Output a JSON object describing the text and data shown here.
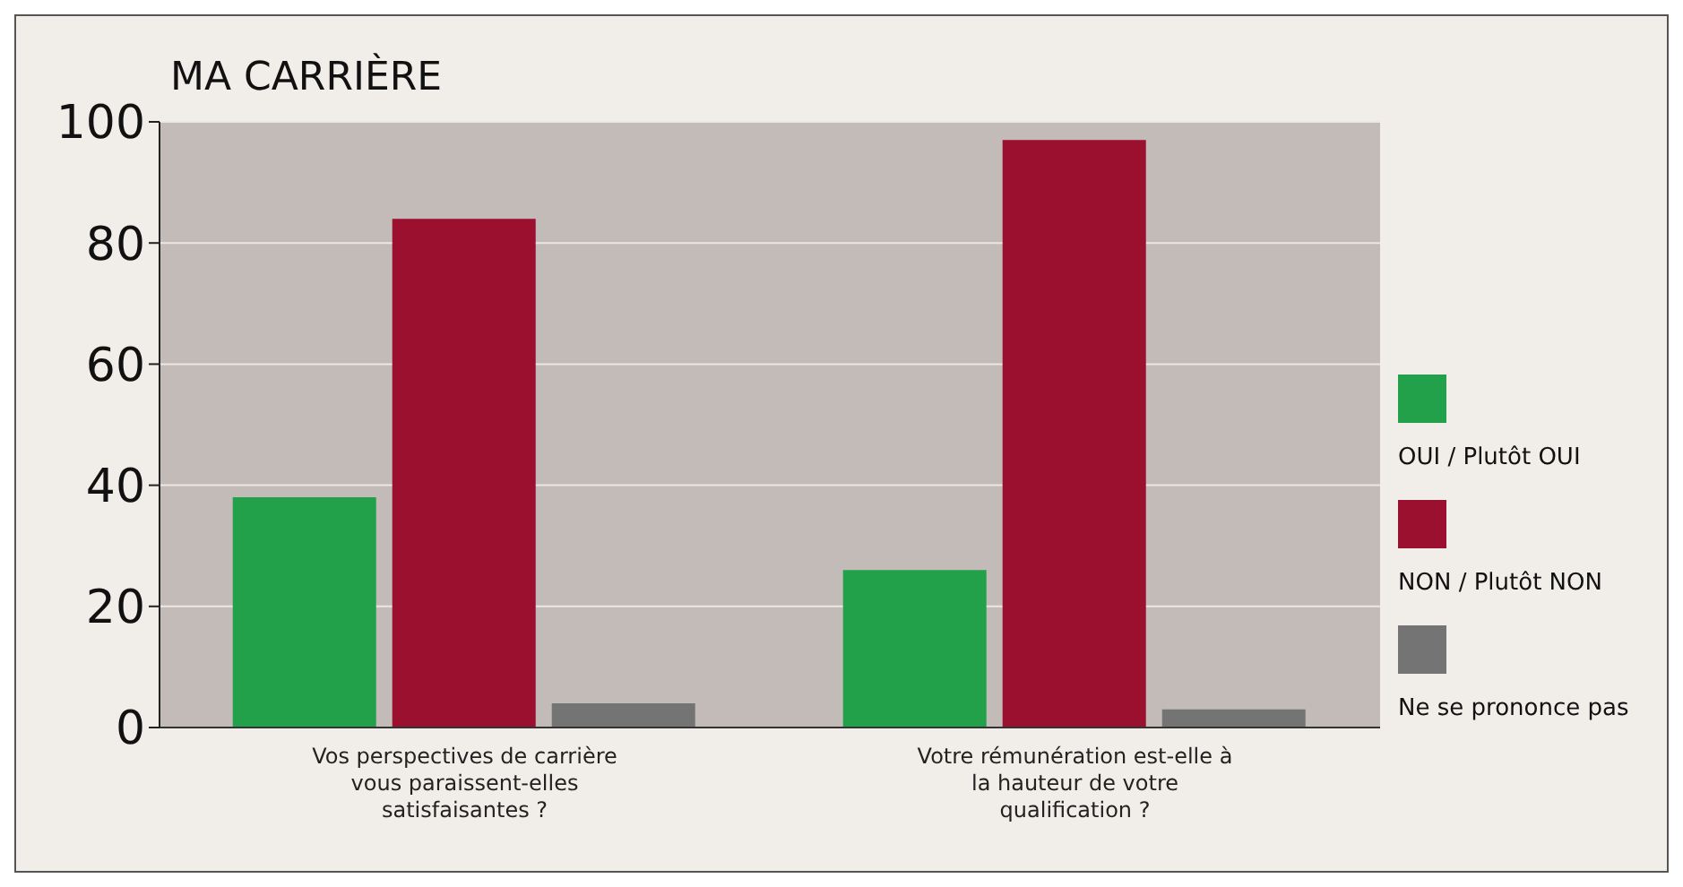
{
  "chart_data": {
    "type": "bar",
    "title": "MA CARRIÈRE",
    "categories": [
      "Vos perspectives de carrière vous paraissent-elles satisfaisantes ?",
      "Votre rémunération est-elle à la hauteur de votre qualification ?"
    ],
    "series": [
      {
        "name": "OUI / Plutôt OUI",
        "color": "#23a04a",
        "values": [
          38,
          26
        ]
      },
      {
        "name": "NON / Plutôt NON",
        "color": "#9b0f2f",
        "values": [
          84,
          97
        ]
      },
      {
        "name": "Ne se prononce pas",
        "color": "#747474",
        "values": [
          4,
          3
        ]
      }
    ],
    "ylim": [
      0,
      100
    ],
    "yticks": [
      0,
      20,
      40,
      60,
      80,
      100
    ],
    "grid": "y",
    "legend": "right"
  }
}
